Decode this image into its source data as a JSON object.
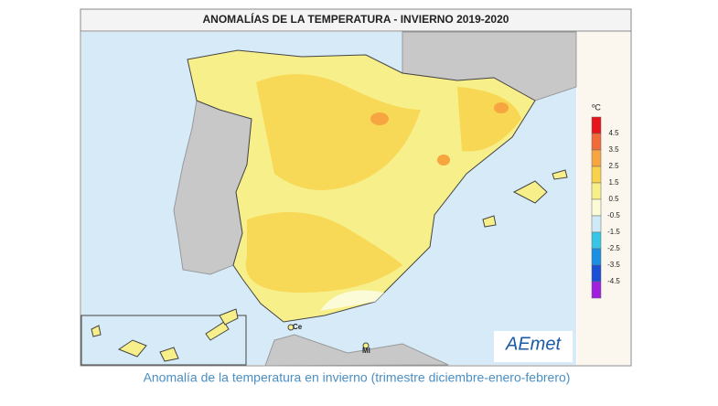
{
  "title": "ANOMALÍAS DE LA TEMPERATURA - INVIERNO 2019-2020",
  "map_labels": {
    "ceuta": "Ce",
    "melilla": "Ml"
  },
  "legend": {
    "unit": "ºC",
    "ticks": [
      4.5,
      3.5,
      2.5,
      1.5,
      0.5,
      -0.5,
      -1.5,
      -2.5,
      -3.5,
      -4.5
    ],
    "colors": [
      "#e8141c",
      "#f26a3a",
      "#f7a540",
      "#f7d24a",
      "#f7ef8a",
      "#fbfbd8",
      "#cfeaf7",
      "#37c6e8",
      "#1a8fe6",
      "#1a4fd8",
      "#a020e0"
    ]
  },
  "logo": "AEmet",
  "caption": "Anomalía de la temperatura en invierno (trimestre diciembre-enero-febrero)"
}
